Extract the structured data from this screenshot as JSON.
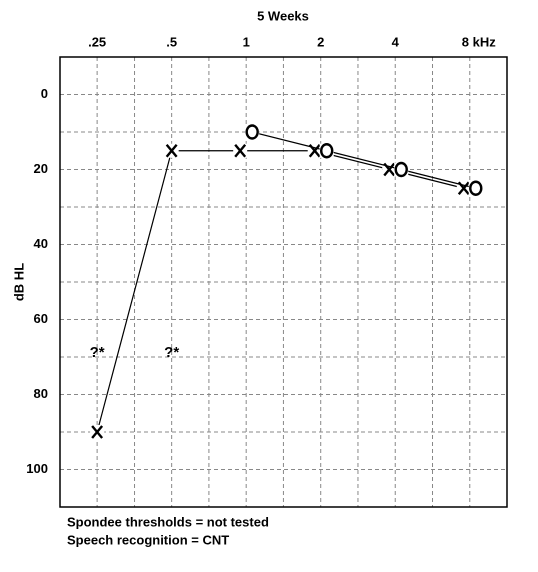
{
  "chart_data": {
    "type": "audiogram",
    "title": "5 Weeks",
    "y_label": "dB HL",
    "xscale": "log",
    "xlim": [
      0.177,
      11.31
    ],
    "xticks": [
      {
        "value": 0.25,
        "label": ".25"
      },
      {
        "value": 0.5,
        "label": ".5"
      },
      1,
      2,
      4,
      {
        "value": 8,
        "label": "8 kHz"
      }
    ],
    "xticks_minor": [
      0.354,
      0.707,
      1.414,
      2.828,
      5.657
    ],
    "ylim": [
      -10,
      110
    ],
    "y_inverted": true,
    "yticks": [
      0,
      20,
      40,
      60,
      80,
      100
    ],
    "yticks_minor": [
      10,
      30,
      50,
      70,
      90
    ],
    "grid": true,
    "series": [
      {
        "marker": "x",
        "color": "#000000",
        "x": [
          0.25,
          0.5,
          1,
          2,
          4,
          8
        ],
        "values": [
          90,
          15,
          15,
          15,
          20,
          25
        ]
      },
      {
        "marker": "o",
        "color": "#000000",
        "x": [
          1,
          2,
          4,
          8
        ],
        "values": [
          10,
          15,
          20,
          25
        ]
      }
    ],
    "annotations": [
      {
        "text": "?*",
        "x": 0.25,
        "y": 69
      },
      {
        "text": "?*",
        "x": 0.5,
        "y": 69
      }
    ],
    "notes": [
      "Spondee thresholds = not tested",
      "Speech recognition = CNT"
    ]
  }
}
